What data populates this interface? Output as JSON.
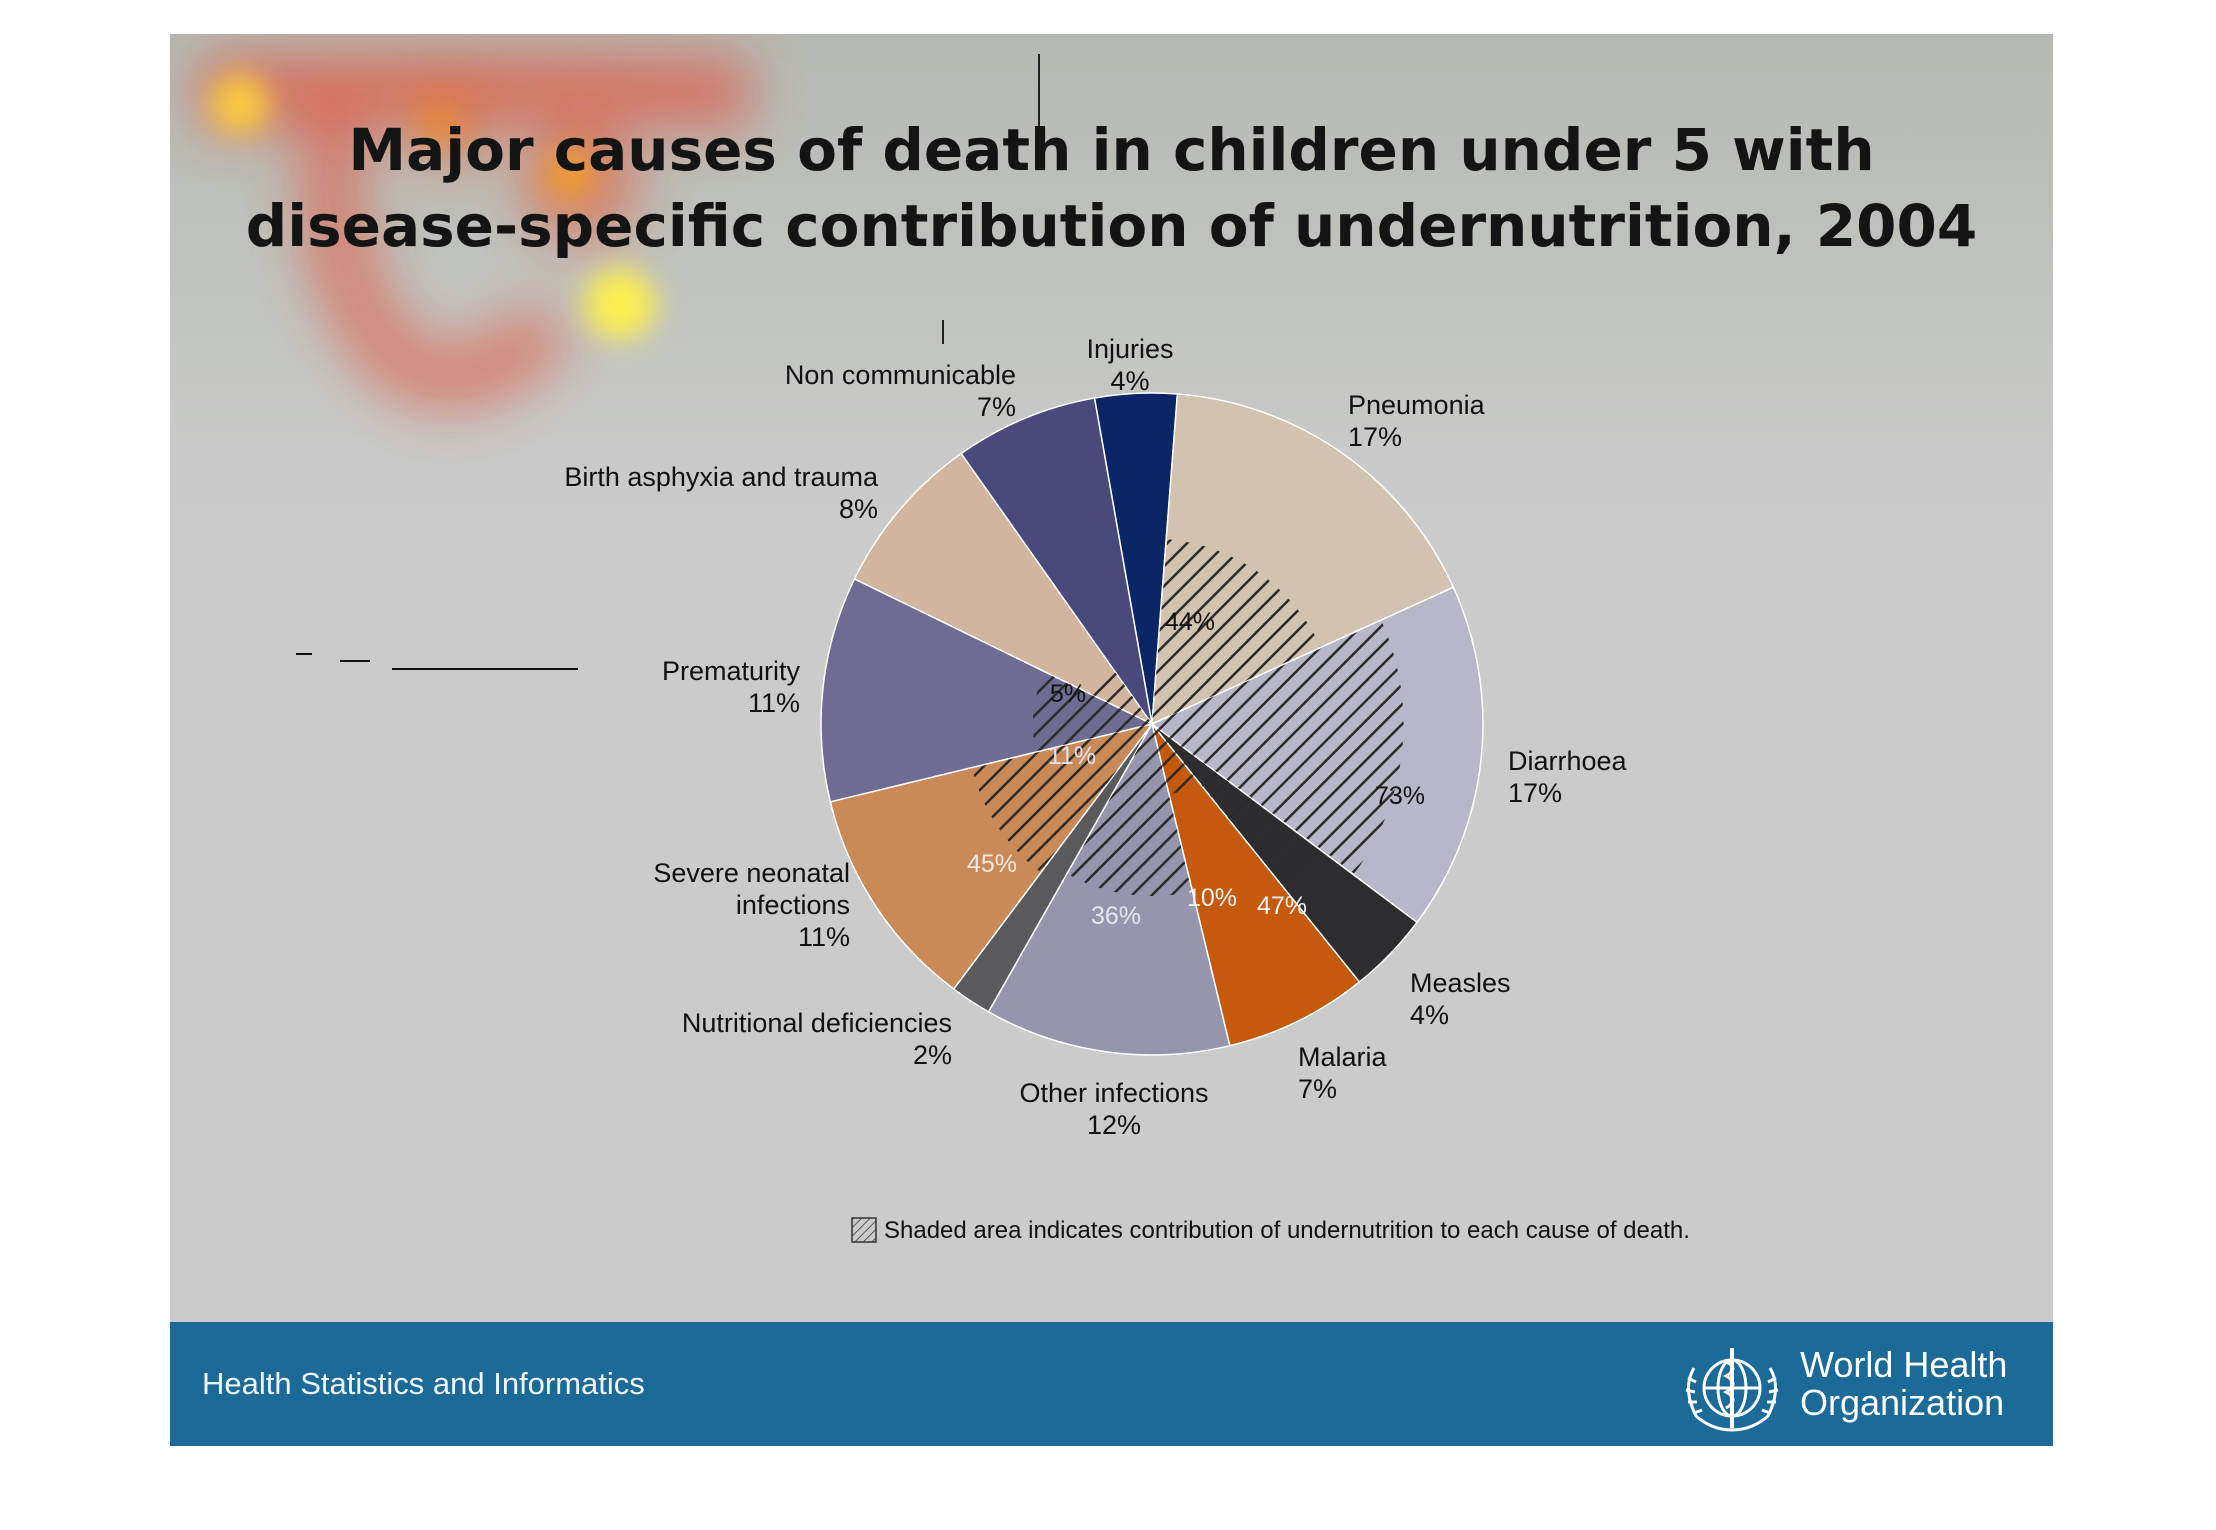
{
  "title_lines": [
    "Major causes of death in children under 5 with",
    "disease-specific contribution of undernutrition, 2004"
  ],
  "footer": {
    "left_text": "Health Statistics and Informatics",
    "org_line1": "World Health",
    "org_line2": "Organization",
    "logo": "who-emblem-icon"
  },
  "colors": {
    "footer_bar": "#1b6a97",
    "slide_background": "#cbcbcb",
    "hatch": "#2b2b2b"
  },
  "chart_data": {
    "type": "pie",
    "title": "Major causes of death in children under 5 with disease-specific contribution of undernutrition, 2004",
    "slices": [
      {
        "name": "Injuries",
        "label_lines": [
          "Injuries",
          "4%"
        ],
        "value": 4,
        "color": "#0b2566",
        "undernutrition_label": null
      },
      {
        "name": "Pneumonia",
        "label_lines": [
          "Pneumonia",
          "17%"
        ],
        "value": 17,
        "color": "#d2c2b0",
        "undernutrition": 44,
        "undernutrition_label": "44%"
      },
      {
        "name": "Diarrhoea",
        "label_lines": [
          "Diarrhoea",
          "17%"
        ],
        "value": 17,
        "color": "#b7b7c9",
        "undernutrition": 73,
        "undernutrition_label": "73%"
      },
      {
        "name": "Measles",
        "label_lines": [
          "Measles",
          "4%"
        ],
        "value": 4,
        "color": "#2d2d31",
        "undernutrition": 47,
        "undernutrition_label": "47%"
      },
      {
        "name": "Malaria",
        "label_lines": [
          "Malaria",
          "7%"
        ],
        "value": 7,
        "color": "#c55a0c",
        "undernutrition": 10,
        "undernutrition_label": "10%"
      },
      {
        "name": "Other infections",
        "label_lines": [
          "Other infections",
          "12%"
        ],
        "value": 12,
        "color": "#9595ad",
        "undernutrition": 36,
        "undernutrition_label": "36%"
      },
      {
        "name": "Nutritional deficiencies",
        "label_lines": [
          "Nutritional deficiencies",
          "2%"
        ],
        "value": 2,
        "color": "#5a5a5e",
        "undernutrition_label": null
      },
      {
        "name": "Severe neonatal infections",
        "label_lines": [
          "Severe neonatal",
          "infections",
          "11%"
        ],
        "value": 11,
        "color": "#c98a58",
        "undernutrition": 45,
        "undernutrition_label": "45%"
      },
      {
        "name": "Prematurity",
        "label_lines": [
          "Prematurity",
          "11%"
        ],
        "value": 11,
        "color": "#6e6c92",
        "undernutrition": 11,
        "undernutrition_label": "11%"
      },
      {
        "name": "Birth asphyxia and trauma",
        "label_lines": [
          "Birth asphyxia and trauma",
          "8%"
        ],
        "value": 8,
        "color": "#d1b59e",
        "undernutrition": 5,
        "undernutrition_label": "5%"
      },
      {
        "name": "Non communicable",
        "label_lines": [
          "Non communicable",
          "7%"
        ],
        "value": 7,
        "color": "#4a497c",
        "undernutrition_label": null
      }
    ],
    "legend_note": "Shaded area indicates contribution of undernutrition to each cause of death."
  }
}
